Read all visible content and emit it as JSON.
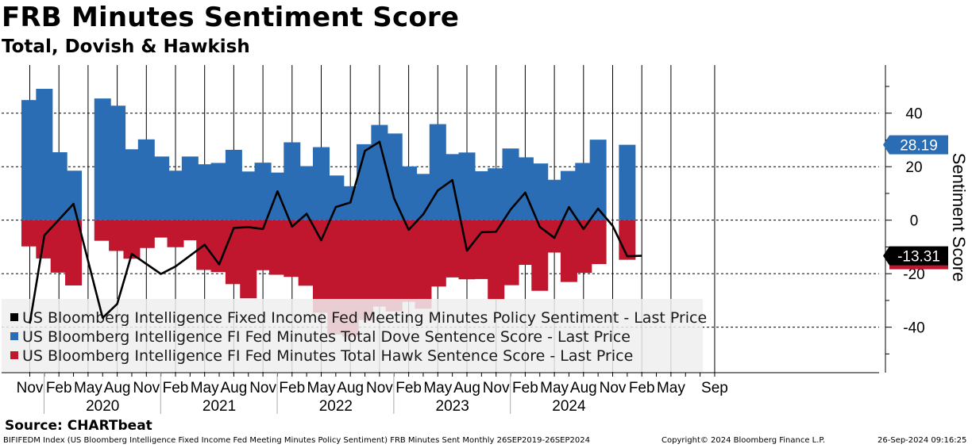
{
  "title": "FRB Minutes Sentiment Score",
  "subtitle": "Total, Dovish & Hawkish",
  "source": "Source: CHARTbeat",
  "footer": {
    "left": "BIFIFEDM Index (US Bloomberg Intelligence Fixed Income Fed Meeting Minutes Policy Sentiment) FRB Minutes Sent  Monthly 26SEP2019-26SEP2024",
    "middle": "Copyright© 2024 Bloomberg Finance L.P.",
    "right": "26-Sep-2024 09:16:25"
  },
  "colors": {
    "dove": "#2a6db5",
    "hawk": "#c0172f",
    "total": "#000000",
    "grid": "#000000"
  },
  "chart_data": {
    "type": "bar",
    "title": "FRB Minutes Sentiment Score",
    "subtitle": "Total, Dovish & Hawkish",
    "ylabel": "Sentiment Score",
    "ylim": [
      -57,
      58
    ],
    "yticks": [
      -40,
      -20,
      0,
      20,
      40
    ],
    "x_tick_labels": [
      {
        "label": "Nov",
        "index": 0
      },
      {
        "label": "Feb",
        "index": 2
      },
      {
        "label": "May",
        "index": 4
      },
      {
        "label": "Aug",
        "index": 6
      },
      {
        "label": "Nov",
        "index": 8
      },
      {
        "label": "Feb",
        "index": 10
      },
      {
        "label": "May",
        "index": 12
      },
      {
        "label": "Aug",
        "index": 14
      },
      {
        "label": "Nov",
        "index": 16
      },
      {
        "label": "Feb",
        "index": 18
      },
      {
        "label": "May",
        "index": 20
      },
      {
        "label": "Aug",
        "index": 22
      },
      {
        "label": "Nov",
        "index": 24
      },
      {
        "label": "Feb",
        "index": 26
      },
      {
        "label": "May",
        "index": 28
      },
      {
        "label": "Aug",
        "index": 30
      },
      {
        "label": "Nov",
        "index": 32
      },
      {
        "label": "Feb",
        "index": 34
      },
      {
        "label": "May",
        "index": 36
      },
      {
        "label": "Aug",
        "index": 38
      },
      {
        "label": "Nov",
        "index": 40
      },
      {
        "label": "Feb",
        "index": 42
      },
      {
        "label": "May",
        "index": 44
      },
      {
        "label": "Sep",
        "index": 47
      }
    ],
    "year_labels": [
      {
        "label": "2020",
        "index": 5
      },
      {
        "label": "2021",
        "index": 13
      },
      {
        "label": "2022",
        "index": 21
      },
      {
        "label": "2023",
        "index": 29
      },
      {
        "label": "2024",
        "index": 37
      }
    ],
    "legend": [
      {
        "name": "US Bloomberg Intelligence Fixed Income Fed Meeting Minutes Policy Sentiment - Last Price",
        "color": "#000000"
      },
      {
        "name": "US Bloomberg Intelligence FI Fed Minutes Total Dove Sentence Score - Last Price",
        "color": "#2a6db5"
      },
      {
        "name": "US Bloomberg Intelligence FI Fed Minutes Total Hawk Sentence Score - Last Price",
        "color": "#c0172f"
      }
    ],
    "last_values": {
      "dove": "28.19",
      "total": "-13.31"
    },
    "series": [
      {
        "name": "Total Dove Sentence Score",
        "type": "bar",
        "x_index": [
          0,
          1,
          2,
          3,
          5,
          6,
          7,
          8,
          9,
          10,
          11,
          12,
          13,
          14,
          15,
          16,
          17,
          18,
          19,
          20,
          21,
          22,
          23,
          24,
          25,
          26,
          27,
          28,
          29,
          30,
          31,
          32,
          33,
          34,
          35,
          36,
          37,
          38,
          39,
          41,
          42
        ],
        "values": [
          44.9,
          49.1,
          25.4,
          18.5,
          45.5,
          42.8,
          26.5,
          30.2,
          23.8,
          18.5,
          23.8,
          20.9,
          21.4,
          26.3,
          18.2,
          21.5,
          17.8,
          29.1,
          20.2,
          27.3,
          16.7,
          12.7,
          28.4,
          35.6,
          32.4,
          20.1,
          17.3,
          35.9,
          24.7,
          25.3,
          18.3,
          19.4,
          26.8,
          23.5,
          21.2,
          15.1,
          18.4,
          21.4,
          30.1,
          28.19,
          0
        ]
      },
      {
        "name": "Total Hawk Sentence Score",
        "type": "bar",
        "values_by_slot": "aligned with dove x_index",
        "values": [
          -9.8,
          -14.3,
          -19.6,
          -24.4,
          -7.7,
          -11.5,
          -14.4,
          -10.4,
          -6.5,
          -10.1,
          -7.5,
          -18.6,
          -19.4,
          -23.9,
          -29.2,
          -18.7,
          -20.4,
          -21.2,
          -24.5,
          -34.6,
          -42.7,
          -43.5,
          -37.3,
          -32.3,
          -34.1,
          -30.5,
          -33.1,
          -24.8,
          -21.4,
          -22.1,
          -22.0,
          -29.7,
          -24.3,
          -16.7,
          -26.4,
          -12.1,
          -23.1,
          -19.7,
          -16.4,
          -14.8,
          0
        ]
      },
      {
        "name": "Policy Sentiment (Total)",
        "type": "line",
        "values": [
          -38.6,
          -5.7,
          6.1,
          -36.5,
          -31.3,
          -12.6,
          -20.1,
          -17.3,
          -9.2,
          -16.5,
          -2.9,
          -2.6,
          -3.3,
          10.8,
          -2.4,
          2.4,
          -7.5,
          4.9,
          6.6,
          25.9,
          29.3,
          8.2,
          -3.6,
          2.2,
          11.1,
          15.0,
          -11.4,
          -4.5,
          -4.3,
          4.0,
          10.3,
          -2.5,
          -6.6,
          4.9,
          -3.3,
          4.3,
          -2.1,
          -13.5,
          -13.31
        ]
      }
    ],
    "line_x_index": [
      0,
      1,
      3,
      5,
      6,
      7,
      9,
      10,
      12,
      13,
      14,
      15,
      16,
      17,
      18,
      19,
      20,
      21,
      22,
      23,
      24,
      25,
      26,
      27,
      28,
      29,
      30,
      31,
      32,
      33,
      34,
      35,
      36,
      37,
      38,
      39,
      40,
      41,
      42
    ]
  }
}
